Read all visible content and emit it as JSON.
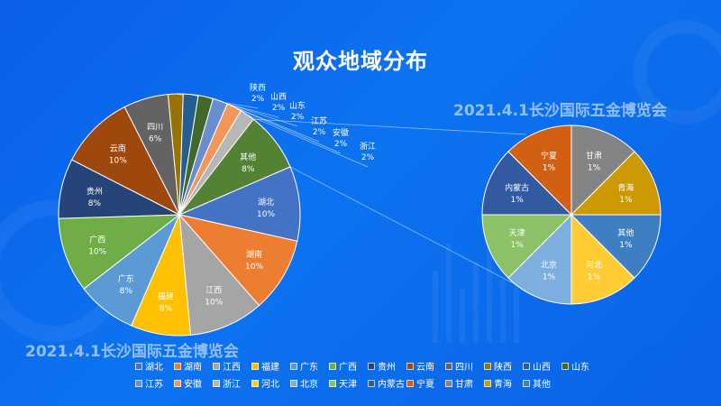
{
  "title": "观众地域分布",
  "watermarks": [
    "2021.4.1长沙国际五金博览会",
    "2021.4.1长沙国际五金博览会"
  ],
  "chart_data": {
    "type": "pie",
    "subtype": "pie-of-pie",
    "main_pie": [
      {
        "label": "湖北",
        "value": 10,
        "text": "10%",
        "color": "#4472c4"
      },
      {
        "label": "湖南",
        "value": 10,
        "text": "10%",
        "color": "#ed7d31"
      },
      {
        "label": "江西",
        "value": 10,
        "text": "10%",
        "color": "#a5a5a5"
      },
      {
        "label": "福建",
        "value": 8,
        "text": "8%",
        "color": "#ffc000"
      },
      {
        "label": "广东",
        "value": 8,
        "text": "8%",
        "color": "#5b9bd5"
      },
      {
        "label": "广西",
        "value": 10,
        "text": "10%",
        "color": "#70ad47"
      },
      {
        "label": "贵州",
        "value": 8,
        "text": "8%",
        "color": "#264478"
      },
      {
        "label": "云南",
        "value": 10,
        "text": "10%",
        "color": "#9e480e"
      },
      {
        "label": "四川",
        "value": 6,
        "text": "6%",
        "color": "#636363"
      },
      {
        "label": "陕西",
        "value": 2,
        "text": "2%",
        "color": "#997300"
      },
      {
        "label": "山西",
        "value": 2,
        "text": "2%",
        "color": "#255e91"
      },
      {
        "label": "山东",
        "value": 2,
        "text": "2%",
        "color": "#43682b"
      },
      {
        "label": "江苏",
        "value": 2,
        "text": "2%",
        "color": "#698ed0"
      },
      {
        "label": "安徽",
        "value": 2,
        "text": "2%",
        "color": "#f1975a"
      },
      {
        "label": "浙江",
        "value": 2,
        "text": "2%",
        "color": "#b7b7b7"
      },
      {
        "label": "其他",
        "value": 8,
        "text": "8%",
        "color": "#548235"
      }
    ],
    "secondary_pie": [
      {
        "label": "河北",
        "value": 1,
        "text": "1%",
        "color": "#ffcd33"
      },
      {
        "label": "北京",
        "value": 1,
        "text": "1%",
        "color": "#7cafdd"
      },
      {
        "label": "天津",
        "value": 1,
        "text": "1%",
        "color": "#8cc168"
      },
      {
        "label": "内蒙古",
        "value": 1,
        "text": "1%",
        "color": "#335aa1"
      },
      {
        "label": "宁夏",
        "value": 1,
        "text": "1%",
        "color": "#d26012"
      },
      {
        "label": "甘肃",
        "value": 1,
        "text": "1%",
        "color": "#848484"
      },
      {
        "label": "青海",
        "value": 1,
        "text": "1%",
        "color": "#cc9a00"
      },
      {
        "label": "其他",
        "value": 1,
        "text": "1%",
        "color": "#3d7fc1"
      }
    ],
    "legend": [
      "湖北",
      "湖南",
      "江西",
      "福建",
      "广东",
      "广西",
      "贵州",
      "云南",
      "四川",
      "陕西",
      "山西",
      "山东",
      "江苏",
      "安徽",
      "浙江",
      "河北",
      "北京",
      "天津",
      "内蒙古",
      "宁夏",
      "甘肃",
      "青海",
      "其他"
    ],
    "legend_colors": [
      "#4472c4",
      "#ed7d31",
      "#a5a5a5",
      "#ffc000",
      "#5b9bd5",
      "#70ad47",
      "#264478",
      "#9e480e",
      "#636363",
      "#997300",
      "#255e91",
      "#43682b",
      "#698ed0",
      "#f1975a",
      "#b7b7b7",
      "#ffcd33",
      "#7cafdd",
      "#8cc168",
      "#335aa1",
      "#d26012",
      "#848484",
      "#cc9a00",
      "#3d7fc1"
    ],
    "legend_placement": "bottom"
  }
}
